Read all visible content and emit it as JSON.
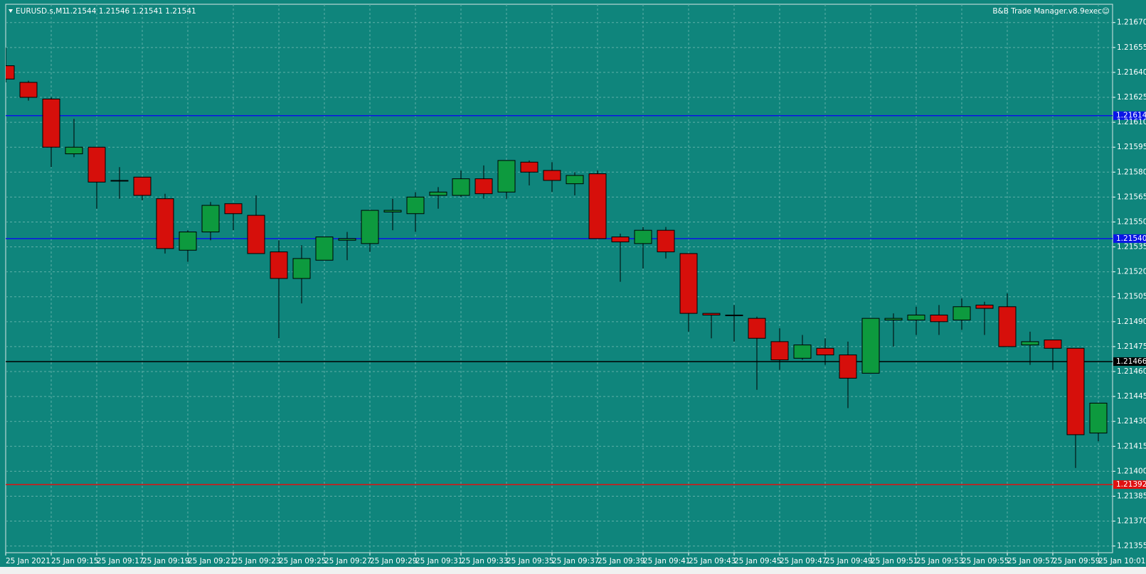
{
  "chart_data": {
    "type": "candlestick",
    "symbol": "EURUSD.s,M1",
    "quote": "1.21544 1.21546 1.21541 1.21541",
    "indicator": "B&B Trade Manager.v8.9exec☺",
    "categories": [
      "25 Jan 2021",
      null,
      "25 Jan 09:15",
      null,
      "25 Jan 09:17",
      null,
      "25 Jan 09:19",
      null,
      "25 Jan 09:21",
      null,
      "25 Jan 09:23",
      null,
      "25 Jan 09:25",
      null,
      "25 Jan 09:27",
      null,
      "25 Jan 09:29",
      null,
      "25 Jan 09:31",
      null,
      "25 Jan 09:33",
      null,
      "25 Jan 09:35",
      null,
      "25 Jan 09:37",
      null,
      "25 Jan 09:39",
      null,
      "25 Jan 09:41",
      null,
      "25 Jan 09:43",
      null,
      "25 Jan 09:45",
      null,
      "25 Jan 09:47",
      null,
      "25 Jan 09:49",
      null,
      "25 Jan 09:51",
      null,
      "25 Jan 09:53",
      null,
      "25 Jan 09:55",
      null,
      "25 Jan 09:57",
      null,
      "25 Jan 09:59",
      null,
      "25 Jan 10:01"
    ],
    "open": [
      1.21644,
      1.21634,
      1.21624,
      1.21591,
      1.21595,
      1.21575,
      1.21577,
      1.21564,
      1.21533,
      1.21544,
      1.21561,
      1.21554,
      1.21532,
      1.21516,
      1.21527,
      1.21539,
      1.21537,
      1.21556,
      1.21555,
      1.21566,
      1.21566,
      1.21576,
      1.21568,
      1.21586,
      1.21581,
      1.21573,
      1.21579,
      1.21541,
      1.21537,
      1.21545,
      1.21531,
      1.21495,
      1.21494,
      1.21492,
      1.21478,
      1.21468,
      1.21474,
      1.2147,
      1.21459,
      1.21491,
      1.21491,
      1.21494,
      1.21491,
      1.215,
      1.21499,
      1.21476,
      1.21479,
      1.21474,
      1.21423
    ],
    "high": [
      1.21655,
      1.21635,
      1.21625,
      1.21612,
      1.21595,
      1.21583,
      1.21577,
      1.21567,
      1.21545,
      1.21562,
      1.21561,
      1.21566,
      1.21539,
      1.21536,
      1.21541,
      1.21544,
      1.21557,
      1.21564,
      1.21568,
      1.21571,
      1.21581,
      1.21584,
      1.21587,
      1.21587,
      1.21586,
      1.2158,
      1.21581,
      1.21543,
      1.21547,
      1.21547,
      1.21531,
      1.21495,
      1.215,
      1.21493,
      1.21486,
      1.21482,
      1.2148,
      1.21478,
      1.21492,
      1.21495,
      1.21499,
      1.215,
      1.21504,
      1.21502,
      1.21507,
      1.21484,
      1.21479,
      1.21474,
      1.21441
    ],
    "low": [
      1.21634,
      1.21623,
      1.21583,
      1.21589,
      1.21558,
      1.21564,
      1.21563,
      1.21531,
      1.21526,
      1.21539,
      1.21545,
      1.21531,
      1.2148,
      1.21501,
      1.21527,
      1.21527,
      1.21532,
      1.21545,
      1.21544,
      1.21558,
      1.21565,
      1.21564,
      1.21564,
      1.21572,
      1.21568,
      1.21566,
      1.2154,
      1.21514,
      1.21522,
      1.21528,
      1.21484,
      1.2148,
      1.21478,
      1.21449,
      1.21461,
      1.21467,
      1.21464,
      1.21438,
      1.21459,
      1.21475,
      1.21482,
      1.21482,
      1.21485,
      1.21482,
      1.21475,
      1.21464,
      1.21461,
      1.21402,
      1.21418
    ],
    "close": [
      1.21636,
      1.21625,
      1.21595,
      1.21595,
      1.21574,
      1.21575,
      1.21566,
      1.21534,
      1.21544,
      1.2156,
      1.21555,
      1.21531,
      1.21516,
      1.21528,
      1.21541,
      1.2154,
      1.21557,
      1.21557,
      1.21565,
      1.21568,
      1.21576,
      1.21567,
      1.21587,
      1.2158,
      1.21575,
      1.21578,
      1.2154,
      1.21538,
      1.21545,
      1.21532,
      1.21495,
      1.21494,
      1.21494,
      1.2148,
      1.21467,
      1.21476,
      1.2147,
      1.21456,
      1.21492,
      1.21492,
      1.21494,
      1.2149,
      1.21499,
      1.21498,
      1.21475,
      1.21478,
      1.21474,
      1.21422,
      1.21441
    ],
    "bull_color": "#0d9a3e",
    "bear_color": "#d60f0b",
    "ylim": [
      1.21351,
      1.21681
    ],
    "yticks": [
      {
        "value": 1.2167,
        "label": "1.21670"
      },
      {
        "value": 1.21655,
        "label": "1.21655"
      },
      {
        "value": 1.2164,
        "label": "1.21640"
      },
      {
        "value": 1.21625,
        "label": "1.21625"
      },
      {
        "value": 1.2161,
        "label": "1.21610"
      },
      {
        "value": 1.21595,
        "label": "1.21595"
      },
      {
        "value": 1.2158,
        "label": "1.21580"
      },
      {
        "value": 1.21565,
        "label": "1.21565"
      },
      {
        "value": 1.2155,
        "label": "1.21550"
      },
      {
        "value": 1.21535,
        "label": "1.21535"
      },
      {
        "value": 1.2152,
        "label": "1.21520"
      },
      {
        "value": 1.21505,
        "label": "1.21505"
      },
      {
        "value": 1.2149,
        "label": "1.21490"
      },
      {
        "value": 1.21475,
        "label": "1.21475"
      },
      {
        "value": 1.2146,
        "label": "1.21460"
      },
      {
        "value": 1.21445,
        "label": "1.21445"
      },
      {
        "value": 1.2143,
        "label": "1.21430"
      },
      {
        "value": 1.21415,
        "label": "1.21415"
      },
      {
        "value": 1.214,
        "label": "1.21400"
      },
      {
        "value": 1.21385,
        "label": "1.21385"
      },
      {
        "value": 1.2137,
        "label": "1.21370"
      },
      {
        "value": 1.21355,
        "label": "1.21355"
      }
    ],
    "levels": [
      {
        "value": 1.21614,
        "label": "1.21614",
        "color": "#0a14e6"
      },
      {
        "value": 1.2154,
        "label": "1.21540",
        "color": "#0a14e6"
      },
      {
        "value": 1.21466,
        "label": "1.21466",
        "color": "#000000"
      },
      {
        "value": 1.21392,
        "label": "1.21392",
        "color": "#e01010"
      }
    ],
    "grid": true
  }
}
